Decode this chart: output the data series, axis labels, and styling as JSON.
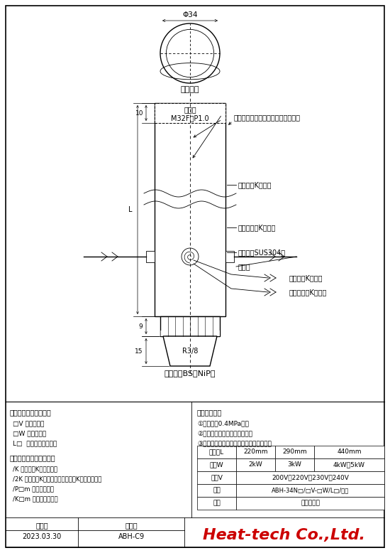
{
  "bg_color": "#ffffff",
  "line_color": "#000000",
  "annotations": {
    "phi34": "Φ34",
    "hot_air_outlet": "熱風出口",
    "inner_thread": "內螺紋",
    "thread_spec": "M32F－P1.0",
    "our_company": "我們公司將在尖端定制訂購螺紋接頭",
    "hot_temp_k": "熱風溫度K熱電偶",
    "surface_temp_k": "發熱體溫度K熱電偶",
    "metal_tube": "金屬管（SUS304）",
    "power_wire": "電源線",
    "hot_temp_k2": "熱風溫度K熱電偶",
    "surface_temp_k2": "發熱體溫度K熱電偶",
    "r38": "R3/8",
    "supply_port": "供氣口（BS＋NiP）",
    "dim_L": "L",
    "dim_10": "10",
    "dim_9": "9",
    "dim_15": "15"
  },
  "left_text": {
    "order_spec": "【在訂貨時規格指定】",
    "line1": "□V 電壓的指定",
    "line2": "□W 電力的指定",
    "line3": "L□  基準管長度的指定",
    "option_title": "【選項　特別訂貨對應】",
    "opt1": "/K 熱風溫度K熱電偶追加",
    "opt2": "/2K 熱風溫度K熱電偶和發熱體溫度K熱電偶的追加",
    "opt3": "/P□m 電源線長指定",
    "opt4": "/K□m 熱電偶線長指定"
  },
  "right_text": {
    "notice_title": "【注意事項】",
    "notice1": "①這是耐壓0.4MPa的。",
    "notice2": "②請供給氣體應該是取出煢乾。",
    "notice3": "③不供給低溫氣體而加熱的話加熱器營壞。"
  },
  "table": {
    "col0": "管長度L",
    "col1": "220mm",
    "col2": "290mm",
    "col3": "440mm",
    "row1_0": "電力W",
    "row1_1": "2kW",
    "row1_2": "3kW",
    "row1_3": "4kW、5kW",
    "row2_0": "電壓V",
    "row2_merged": "200V、220V、230V、240V",
    "row3_0": "型號",
    "row3_merged": "ABH-34N□/□V-□W/L□/選項",
    "row4_0": "品名",
    "row4_merged": "熱風加熱器"
  },
  "footer": {
    "date_label": "日　期",
    "number_label": "圖　號",
    "date_value": "2023.03.30",
    "number_value": "ABH-C9",
    "company": "Heat-tech Co.,Ltd."
  }
}
